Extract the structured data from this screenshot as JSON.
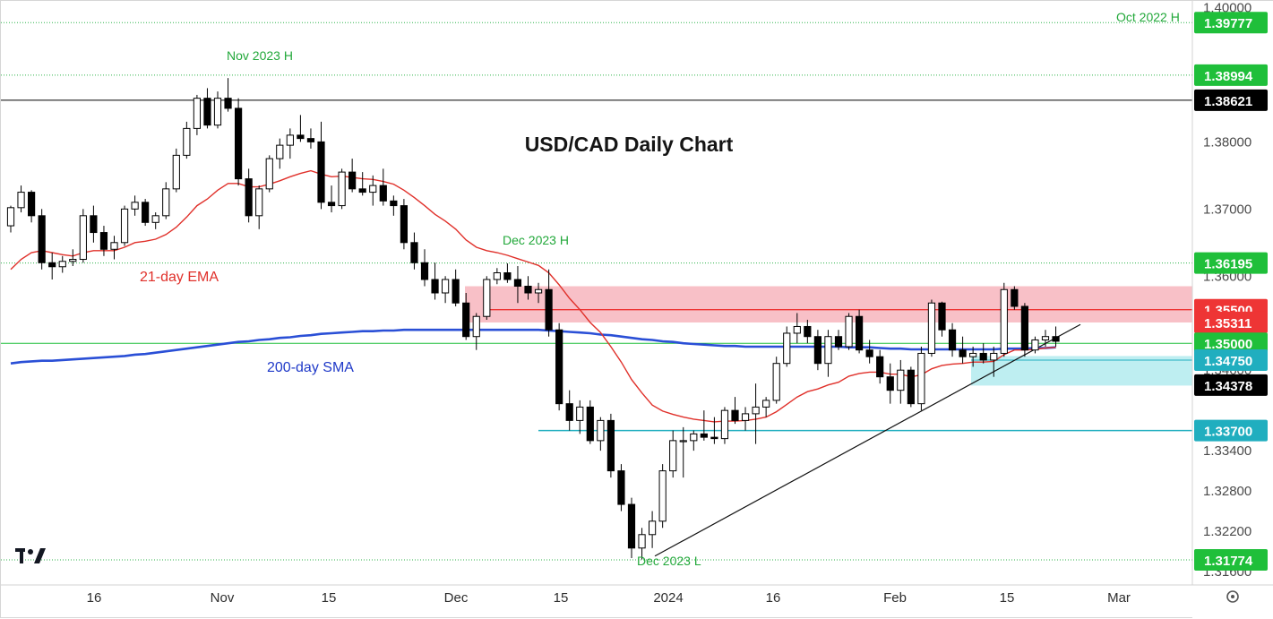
{
  "chart_data": {
    "type": "candlestick",
    "title": "USD/CAD Daily Chart",
    "y_range": [
      1.314,
      1.401
    ],
    "y_ticks": [
      "1.40000",
      "1.38000",
      "1.37000",
      "1.36000",
      "1.34600",
      "1.33400",
      "1.32800",
      "1.32200",
      "1.31600"
    ],
    "x_ticks": [
      "16",
      "Nov",
      "15",
      "Dec",
      "15",
      "2024",
      "16",
      "Feb",
      "15",
      "Mar"
    ],
    "price_tags": [
      {
        "label": "1.39777",
        "value": 1.39777,
        "bg": "#1fbf3a",
        "fg": "#ffffff"
      },
      {
        "label": "1.38994",
        "value": 1.38994,
        "bg": "#1fbf3a",
        "fg": "#ffffff"
      },
      {
        "label": "1.38621",
        "value": 1.38621,
        "bg": "#000000",
        "fg": "#ffffff"
      },
      {
        "label": "1.36195",
        "value": 1.36195,
        "bg": "#1fbf3a",
        "fg": "#ffffff"
      },
      {
        "label": "1.35500",
        "value": 1.355,
        "bg": "#ee3535",
        "fg": "#ffffff"
      },
      {
        "label": "1.35311",
        "value": 1.35311,
        "bg": "#ee3535",
        "fg": "#ffffff"
      },
      {
        "label": "1.35000",
        "value": 1.35,
        "bg": "#1fbf3a",
        "fg": "#ffffff"
      },
      {
        "label": "1.34750",
        "value": 1.3475,
        "bg": "#20aebf",
        "fg": "#ffffff"
      },
      {
        "label": "1.34378",
        "value": 1.34378,
        "bg": "#000000",
        "fg": "#ffffff"
      },
      {
        "label": "1.33700",
        "value": 1.337,
        "bg": "#20aebf",
        "fg": "#ffffff"
      },
      {
        "label": "1.31774",
        "value": 1.31774,
        "bg": "#1fbf3a",
        "fg": "#ffffff"
      }
    ],
    "annotations": [
      {
        "text": "Oct 2022 H",
        "color": "#22a83a"
      },
      {
        "text": "Nov 2023 H",
        "color": "#22a83a"
      },
      {
        "text": "Dec 2023 H",
        "color": "#22a83a"
      },
      {
        "text": "Dec 2023 L",
        "color": "#22a83a"
      },
      {
        "text": "21-day EMA",
        "color": "#e0302a"
      },
      {
        "text": "200-day SMA",
        "color": "#1f39c8"
      }
    ],
    "zones": [
      {
        "name": "resistance",
        "from": 1.3531,
        "to": 1.3585,
        "color": "#f7b5bd"
      },
      {
        "name": "support",
        "from": 1.3437,
        "to": 1.3481,
        "color": "#b7ecef"
      }
    ],
    "candles": [
      [
        1.3675,
        1.3705,
        1.3665,
        1.3702
      ],
      [
        1.3702,
        1.3735,
        1.3695,
        1.3725
      ],
      [
        1.3725,
        1.3728,
        1.368,
        1.369
      ],
      [
        1.369,
        1.37,
        1.361,
        1.362
      ],
      [
        1.362,
        1.3635,
        1.3595,
        1.3614
      ],
      [
        1.3614,
        1.363,
        1.3605,
        1.3622
      ],
      [
        1.3622,
        1.364,
        1.3615,
        1.3625
      ],
      [
        1.3625,
        1.37,
        1.362,
        1.369
      ],
      [
        1.369,
        1.3705,
        1.365,
        1.3665
      ],
      [
        1.3665,
        1.3675,
        1.363,
        1.364
      ],
      [
        1.364,
        1.366,
        1.3625,
        1.365
      ],
      [
        1.365,
        1.3705,
        1.3645,
        1.37
      ],
      [
        1.37,
        1.372,
        1.369,
        1.371
      ],
      [
        1.371,
        1.3715,
        1.3675,
        1.368
      ],
      [
        1.368,
        1.3695,
        1.367,
        1.369
      ],
      [
        1.369,
        1.374,
        1.3685,
        1.373
      ],
      [
        1.373,
        1.379,
        1.3725,
        1.378
      ],
      [
        1.378,
        1.383,
        1.3775,
        1.382
      ],
      [
        1.382,
        1.387,
        1.381,
        1.3865
      ],
      [
        1.3865,
        1.388,
        1.382,
        1.3825
      ],
      [
        1.3825,
        1.3875,
        1.382,
        1.3865
      ],
      [
        1.3865,
        1.3895,
        1.3845,
        1.385
      ],
      [
        1.385,
        1.3865,
        1.3735,
        1.3745
      ],
      [
        1.3745,
        1.376,
        1.368,
        1.369
      ],
      [
        1.369,
        1.3735,
        1.367,
        1.373
      ],
      [
        1.373,
        1.378,
        1.3725,
        1.3775
      ],
      [
        1.3775,
        1.3805,
        1.376,
        1.3795
      ],
      [
        1.3795,
        1.382,
        1.3775,
        1.381
      ],
      [
        1.381,
        1.384,
        1.38,
        1.3805
      ],
      [
        1.3805,
        1.382,
        1.379,
        1.38
      ],
      [
        1.38,
        1.383,
        1.37,
        1.371
      ],
      [
        1.371,
        1.3735,
        1.3695,
        1.3705
      ],
      [
        1.3705,
        1.376,
        1.37,
        1.3755
      ],
      [
        1.3755,
        1.3775,
        1.3725,
        1.373
      ],
      [
        1.373,
        1.3755,
        1.372,
        1.3725
      ],
      [
        1.3725,
        1.375,
        1.3705,
        1.3735
      ],
      [
        1.3735,
        1.376,
        1.3705,
        1.3712
      ],
      [
        1.3712,
        1.372,
        1.369,
        1.3705
      ],
      [
        1.3705,
        1.3715,
        1.364,
        1.365
      ],
      [
        1.365,
        1.3665,
        1.361,
        1.362
      ],
      [
        1.362,
        1.364,
        1.3585,
        1.3595
      ],
      [
        1.3595,
        1.362,
        1.3565,
        1.3575
      ],
      [
        1.3575,
        1.36,
        1.356,
        1.3595
      ],
      [
        1.3595,
        1.361,
        1.3555,
        1.356
      ],
      [
        1.356,
        1.3575,
        1.3505,
        1.351
      ],
      [
        1.351,
        1.3545,
        1.349,
        1.354
      ],
      [
        1.354,
        1.36,
        1.3535,
        1.3595
      ],
      [
        1.3595,
        1.3612,
        1.3588,
        1.3605
      ],
      [
        1.3605,
        1.3619,
        1.359,
        1.3595
      ],
      [
        1.3595,
        1.3615,
        1.356,
        1.3585
      ],
      [
        1.3585,
        1.36,
        1.3565,
        1.3575
      ],
      [
        1.3575,
        1.359,
        1.356,
        1.358
      ],
      [
        1.358,
        1.361,
        1.351,
        1.352
      ],
      [
        1.352,
        1.353,
        1.34,
        1.341
      ],
      [
        1.341,
        1.343,
        1.337,
        1.3385
      ],
      [
        1.3385,
        1.3415,
        1.3365,
        1.3405
      ],
      [
        1.3405,
        1.3415,
        1.335,
        1.3355
      ],
      [
        1.3355,
        1.339,
        1.334,
        1.3385
      ],
      [
        1.3385,
        1.3395,
        1.33,
        1.331
      ],
      [
        1.331,
        1.332,
        1.325,
        1.326
      ],
      [
        1.326,
        1.327,
        1.318,
        1.3195
      ],
      [
        1.3195,
        1.3225,
        1.3178,
        1.3215
      ],
      [
        1.3215,
        1.325,
        1.3195,
        1.3235
      ],
      [
        1.3235,
        1.332,
        1.3225,
        1.331
      ],
      [
        1.331,
        1.337,
        1.33,
        1.3355
      ],
      [
        1.3355,
        1.3375,
        1.33,
        1.3355
      ],
      [
        1.3355,
        1.337,
        1.334,
        1.3365
      ],
      [
        1.3365,
        1.34,
        1.3355,
        1.336
      ],
      [
        1.336,
        1.339,
        1.335,
        1.3358
      ],
      [
        1.3358,
        1.3405,
        1.335,
        1.34
      ],
      [
        1.34,
        1.342,
        1.338,
        1.3385
      ],
      [
        1.3385,
        1.3405,
        1.337,
        1.3395
      ],
      [
        1.3395,
        1.344,
        1.335,
        1.3405
      ],
      [
        1.3405,
        1.342,
        1.339,
        1.3415
      ],
      [
        1.3415,
        1.348,
        1.341,
        1.347
      ],
      [
        1.347,
        1.3525,
        1.3465,
        1.3515
      ],
      [
        1.3515,
        1.3545,
        1.35,
        1.3525
      ],
      [
        1.3525,
        1.3535,
        1.35,
        1.351
      ],
      [
        1.351,
        1.352,
        1.346,
        1.347
      ],
      [
        1.347,
        1.352,
        1.345,
        1.351
      ],
      [
        1.351,
        1.352,
        1.349,
        1.3495
      ],
      [
        1.3495,
        1.3545,
        1.349,
        1.354
      ],
      [
        1.354,
        1.355,
        1.3485,
        1.349
      ],
      [
        1.349,
        1.3505,
        1.347,
        1.348
      ],
      [
        1.348,
        1.349,
        1.344,
        1.345
      ],
      [
        1.345,
        1.347,
        1.341,
        1.343
      ],
      [
        1.343,
        1.3475,
        1.341,
        1.346
      ],
      [
        1.346,
        1.3465,
        1.3405,
        1.341
      ],
      [
        1.341,
        1.3495,
        1.34,
        1.3485
      ],
      [
        1.3485,
        1.3565,
        1.348,
        1.356
      ],
      [
        1.356,
        1.3562,
        1.351,
        1.352
      ],
      [
        1.352,
        1.353,
        1.348,
        1.349
      ],
      [
        1.349,
        1.351,
        1.347,
        1.348
      ],
      [
        1.348,
        1.3495,
        1.3465,
        1.3485
      ],
      [
        1.3485,
        1.35,
        1.347,
        1.3475
      ],
      [
        1.3475,
        1.3495,
        1.345,
        1.3485
      ],
      [
        1.3485,
        1.359,
        1.348,
        1.358
      ],
      [
        1.358,
        1.3585,
        1.355,
        1.3555
      ],
      [
        1.3555,
        1.356,
        1.348,
        1.349
      ],
      [
        1.349,
        1.351,
        1.3485,
        1.3505
      ],
      [
        1.3505,
        1.352,
        1.3495,
        1.351
      ],
      [
        1.351,
        1.3525,
        1.3495,
        1.3503
      ]
    ],
    "ema21": [
      1.361,
      1.3625,
      1.3635,
      1.3638,
      1.3635,
      1.3632,
      1.363,
      1.3635,
      1.3638,
      1.3638,
      1.3638,
      1.3643,
      1.365,
      1.3652,
      1.3655,
      1.3662,
      1.3673,
      1.3688,
      1.3705,
      1.3715,
      1.3728,
      1.3738,
      1.3738,
      1.3733,
      1.3733,
      1.3737,
      1.3742,
      1.3748,
      1.3753,
      1.3757,
      1.3752,
      1.3748,
      1.3749,
      1.3747,
      1.3745,
      1.3744,
      1.3741,
      1.3737,
      1.3728,
      1.3717,
      1.3705,
      1.3692,
      1.3682,
      1.367,
      1.3654,
      1.3643,
      1.3638,
      1.3635,
      1.3631,
      1.3626,
      1.3621,
      1.3616,
      1.3605,
      1.3587,
      1.3567,
      1.355,
      1.3531,
      1.3516,
      1.3495,
      1.3472,
      1.3446,
      1.3426,
      1.3408,
      1.3399,
      1.3394,
      1.339,
      1.3387,
      1.3385,
      1.3383,
      1.3384,
      1.3384,
      1.3385,
      1.3387,
      1.339,
      1.3398,
      1.3409,
      1.342,
      1.3428,
      1.3432,
      1.3438,
      1.3442,
      1.3451,
      1.3455,
      1.3457,
      1.3457,
      1.3454,
      1.3454,
      1.345,
      1.3453,
      1.3462,
      1.3467,
      1.3469,
      1.347,
      1.3472,
      1.3472,
      1.3473,
      1.3483,
      1.349,
      1.349,
      1.3491,
      1.3493,
      1.3494
    ],
    "sma200": [
      1.347,
      1.3472,
      1.3473,
      1.3474,
      1.3474,
      1.3475,
      1.3476,
      1.3477,
      1.3478,
      1.3479,
      1.348,
      1.3481,
      1.3483,
      1.3484,
      1.3486,
      1.3488,
      1.349,
      1.3492,
      1.3494,
      1.3496,
      1.3498,
      1.35,
      1.3502,
      1.3503,
      1.3505,
      1.3506,
      1.3508,
      1.3509,
      1.3511,
      1.3512,
      1.3514,
      1.3515,
      1.3516,
      1.3517,
      1.3518,
      1.3518,
      1.3519,
      1.3519,
      1.352,
      1.352,
      1.352,
      1.352,
      1.352,
      1.352,
      1.352,
      1.352,
      1.352,
      1.352,
      1.352,
      1.352,
      1.352,
      1.352,
      1.3519,
      1.3518,
      1.3517,
      1.3516,
      1.3515,
      1.3513,
      1.3512,
      1.351,
      1.3508,
      1.3506,
      1.3505,
      1.3503,
      1.3502,
      1.35,
      1.3499,
      1.3498,
      1.3497,
      1.3496,
      1.3496,
      1.3495,
      1.3495,
      1.3495,
      1.3495,
      1.3495,
      1.3495,
      1.3495,
      1.3495,
      1.3495,
      1.3495,
      1.3494,
      1.3494,
      1.3494,
      1.3493,
      1.3492,
      1.3492,
      1.3491,
      1.3491,
      1.3491,
      1.3491,
      1.3491,
      1.3491,
      1.3491,
      1.3491,
      1.3491,
      1.3492,
      1.3492,
      1.3492,
      1.3493,
      1.3493,
      1.3494
    ]
  }
}
